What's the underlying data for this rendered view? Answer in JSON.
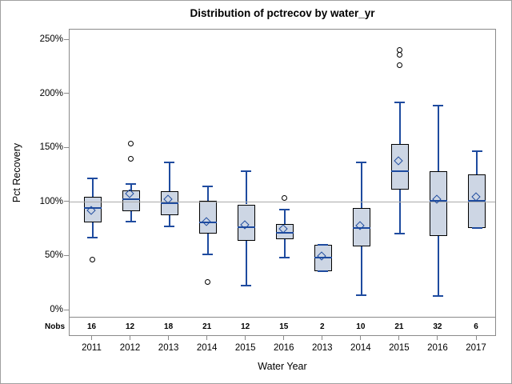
{
  "colors": {
    "box_fill": "#cdd6e4",
    "box_border": "#000000",
    "whisker_blue": "#1e4b9f",
    "outlier": "#000000",
    "reference_line": "#ababab",
    "frame_gray": "#8a8a8a"
  },
  "chart_data": {
    "type": "boxplot",
    "title": "Distribution of pctrecov by water_yr",
    "xlabel": "Water Year",
    "ylabel": "Pct Recovery",
    "ylim": [
      0,
      250
    ],
    "y_tick_values": [
      0,
      50,
      100,
      150,
      200,
      250
    ],
    "y_tick_labels": [
      "0%",
      "50%",
      "100%",
      "150%",
      "200%",
      "250%"
    ],
    "reference_line": 100,
    "grid": "off",
    "nobs_row_label": "Nobs",
    "categories": [
      "2011",
      "2012",
      "2013",
      "2014",
      "2015",
      "2016",
      "2013",
      "2014",
      "2015",
      "2016",
      "2017"
    ],
    "boxes": [
      {
        "year": "2011",
        "nobs": 16,
        "low": 67,
        "q1": 81,
        "median": 95,
        "mean": 91,
        "q3": 105,
        "high": 122,
        "outliers": [
          47
        ]
      },
      {
        "year": "2012",
        "nobs": 12,
        "low": 82,
        "q1": 92,
        "median": 103,
        "mean": 107,
        "q3": 111,
        "high": 117,
        "outliers": [
          140,
          154
        ]
      },
      {
        "year": "2013",
        "nobs": 18,
        "low": 78,
        "q1": 88,
        "median": 99,
        "mean": 102,
        "q3": 110,
        "high": 137,
        "outliers": []
      },
      {
        "year": "2014",
        "nobs": 21,
        "low": 52,
        "q1": 71,
        "median": 81,
        "mean": 81,
        "q3": 101,
        "high": 115,
        "outliers": [
          26
        ]
      },
      {
        "year": "2015",
        "nobs": 12,
        "low": 23,
        "q1": 64,
        "median": 77,
        "mean": 78,
        "q3": 98,
        "high": 129,
        "outliers": []
      },
      {
        "year": "2016",
        "nobs": 15,
        "low": 49,
        "q1": 66,
        "median": 72,
        "mean": 74,
        "q3": 80,
        "high": 93,
        "outliers": [
          104
        ]
      },
      {
        "year": "2013",
        "nobs": 2,
        "low": 36,
        "q1": 36,
        "median": 49,
        "mean": 49,
        "q3": 61,
        "high": 61,
        "outliers": []
      },
      {
        "year": "2014",
        "nobs": 10,
        "low": 14,
        "q1": 59,
        "median": 76,
        "mean": 77,
        "q3": 95,
        "high": 137,
        "outliers": []
      },
      {
        "year": "2015",
        "nobs": 21,
        "low": 71,
        "q1": 112,
        "median": 129,
        "mean": 137,
        "q3": 154,
        "high": 192,
        "outliers": [
          227,
          236,
          241
        ]
      },
      {
        "year": "2016",
        "nobs": 32,
        "low": 13,
        "q1": 69,
        "median": 101,
        "mean": 102,
        "q3": 129,
        "high": 189,
        "outliers": []
      },
      {
        "year": "2017",
        "nobs": 6,
        "low": 76,
        "q1": 76,
        "median": 101,
        "mean": 104,
        "q3": 126,
        "high": 147,
        "outliers": []
      }
    ]
  }
}
